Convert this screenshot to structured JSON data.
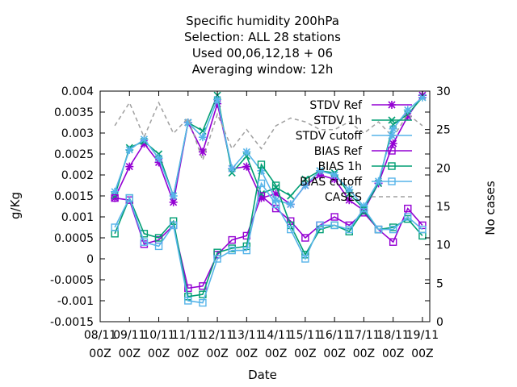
{
  "chart_data": {
    "type": "line",
    "title_lines": [
      "Specific humidity 200hPa",
      "Selection: ALL      28 stations",
      "Used  00,06,12,18 + 06",
      "Averaging window: 12h"
    ],
    "xlabel": "Date",
    "ylabel": "g/Kg",
    "y2label": "No cases",
    "x_ticks": [
      {
        "t": 0,
        "l1": "08/11",
        "l2": "00Z"
      },
      {
        "t": 1,
        "l1": "09/11",
        "l2": "00Z"
      },
      {
        "t": 2,
        "l1": "10/11",
        "l2": "00Z"
      },
      {
        "t": 3,
        "l1": "11/11",
        "l2": "00Z"
      },
      {
        "t": 4,
        "l1": "12/11",
        "l2": "00Z"
      },
      {
        "t": 5,
        "l1": "13/11",
        "l2": "00Z"
      },
      {
        "t": 6,
        "l1": "14/11",
        "l2": "00Z"
      },
      {
        "t": 7,
        "l1": "15/11",
        "l2": "00Z"
      },
      {
        "t": 8,
        "l1": "16/11",
        "l2": "00Z"
      },
      {
        "t": 9,
        "l1": "17/11",
        "l2": "00Z"
      },
      {
        "t": 10,
        "l1": "18/11",
        "l2": "00Z"
      },
      {
        "t": 11,
        "l1": "19/11",
        "l2": "00Z"
      }
    ],
    "xlim": [
      0,
      11.25
    ],
    "ylim": [
      -0.0015,
      0.004
    ],
    "y_ticks": [
      "-0.0015",
      "-0.001",
      "-0.0005",
      "0",
      "0.0005",
      "0.001",
      "0.0015",
      "0.002",
      "0.0025",
      "0.003",
      "0.0035",
      "0.004"
    ],
    "y2lim": [
      0,
      30
    ],
    "y2_ticks": [
      "0",
      "5",
      "10",
      "15",
      "20",
      "25",
      "30"
    ],
    "x": [
      0.5,
      1.0,
      1.5,
      2.0,
      2.5,
      3.0,
      3.5,
      4.0,
      4.5,
      5.0,
      5.5,
      6.0,
      6.5,
      7.0,
      7.5,
      8.0,
      8.5,
      9.0,
      9.5,
      10.0,
      10.5,
      11.0
    ],
    "series": [
      {
        "name": "STDV Ref",
        "color": "#9400d3",
        "marker": "star",
        "axis": "y1",
        "values": [
          0.00145,
          0.0022,
          0.00275,
          0.0023,
          0.00135,
          0.00325,
          0.00255,
          0.0037,
          0.00215,
          0.0022,
          0.00145,
          0.00155,
          0.0013,
          0.00175,
          0.002,
          0.0019,
          0.0014,
          0.00115,
          0.0018,
          0.00275,
          0.0034,
          0.0039
        ]
      },
      {
        "name": "STDV 1h",
        "color": "#009e73",
        "marker": "x",
        "axis": "y1",
        "values": [
          0.0015,
          0.00265,
          0.0028,
          0.0025,
          0.0015,
          0.00325,
          0.00305,
          0.0039,
          0.00205,
          0.00245,
          0.00155,
          0.0017,
          0.0015,
          0.0019,
          0.0021,
          0.00205,
          0.00155,
          0.0012,
          0.0018,
          0.0032,
          0.00345,
          0.00385
        ]
      },
      {
        "name": "STDV cutoff",
        "color": "#56b4e9",
        "marker": "star",
        "axis": "y1",
        "values": [
          0.0016,
          0.0026,
          0.00285,
          0.0024,
          0.0015,
          0.00325,
          0.0029,
          0.0038,
          0.00215,
          0.00255,
          0.0021,
          0.0014,
          0.0013,
          0.00175,
          0.0021,
          0.002,
          0.00165,
          0.00125,
          0.00185,
          0.0031,
          0.00355,
          0.00385
        ]
      },
      {
        "name": "BIAS Ref",
        "color": "#9400d3",
        "marker": "square",
        "axis": "y1",
        "values": [
          0.00145,
          0.0014,
          0.00035,
          0.00045,
          0.0008,
          -0.0007,
          -0.00065,
          0.0001,
          0.00045,
          0.00055,
          0.0015,
          0.0012,
          0.0009,
          0.0005,
          0.0008,
          0.001,
          0.0008,
          0.0011,
          0.0007,
          0.0004,
          0.0012,
          0.0008
        ]
      },
      {
        "name": "BIAS 1h",
        "color": "#009e73",
        "marker": "square",
        "axis": "y1",
        "values": [
          0.0006,
          0.00145,
          0.0006,
          0.0005,
          0.0009,
          -0.0009,
          -0.00085,
          0.00015,
          0.00025,
          0.0003,
          0.00225,
          0.00175,
          0.0008,
          0.0001,
          0.0007,
          0.0008,
          0.00065,
          0.00115,
          0.0007,
          0.00075,
          0.00095,
          0.00055
        ]
      },
      {
        "name": "BIAS cutoff",
        "color": "#56b4e9",
        "marker": "square",
        "axis": "y1",
        "values": [
          0.00075,
          0.00145,
          0.0004,
          0.0003,
          0.0008,
          -0.001,
          -0.00105,
          0.0,
          0.0002,
          0.0002,
          0.0018,
          0.0013,
          0.0007,
          0.0,
          0.0008,
          0.0008,
          0.0007,
          0.0012,
          0.0007,
          0.0007,
          0.001,
          0.0007
        ]
      },
      {
        "name": "CASES",
        "color": "#a0a0a0",
        "dashed": true,
        "axis": "y2",
        "values": [
          25.5,
          28.5,
          24,
          28.5,
          24.5,
          26.5,
          21,
          27,
          22.5,
          25,
          22.5,
          25.5,
          26.5,
          26,
          25,
          25,
          26,
          24.5,
          26,
          24,
          27,
          25.5
        ]
      }
    ],
    "legend_position": "top-right",
    "grid": false
  }
}
